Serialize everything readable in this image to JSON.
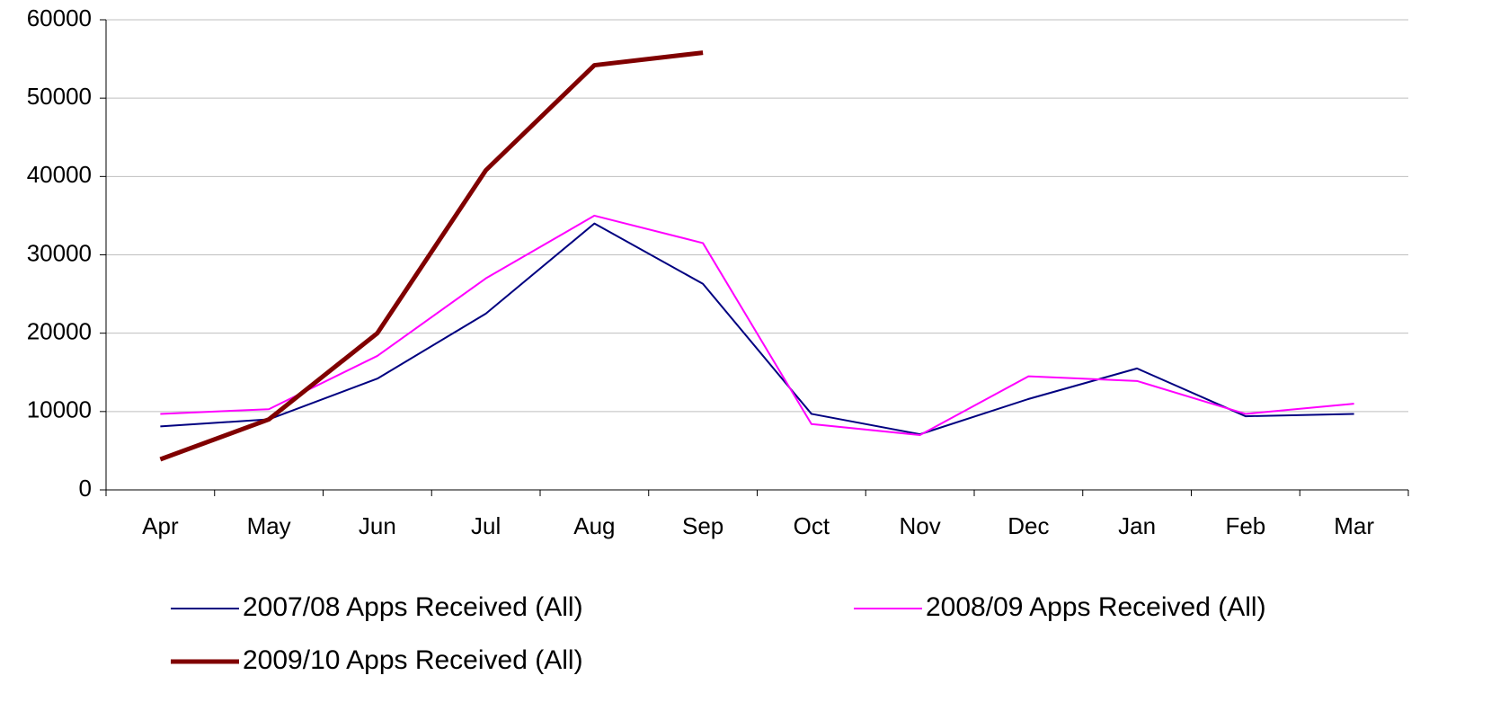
{
  "chart_data": {
    "type": "line",
    "categories": [
      "Apr",
      "May",
      "Jun",
      "Jul",
      "Aug",
      "Sep",
      "Oct",
      "Nov",
      "Dec",
      "Jan",
      "Feb",
      "Mar"
    ],
    "series": [
      {
        "name": "2007/08 Apps Received (All)",
        "color": "#000080",
        "values": [
          8100,
          9000,
          14200,
          22500,
          34000,
          26300,
          9700,
          7100,
          11600,
          15500,
          9400,
          9700
        ]
      },
      {
        "name": "2008/09 Apps Received (All)",
        "color": "#ff00ff",
        "values": [
          9700,
          10300,
          17100,
          27000,
          35000,
          31500,
          8400,
          7000,
          14500,
          13900,
          9700,
          11000
        ]
      },
      {
        "name": "2009/10 Apps Received (All)",
        "color": "#800000",
        "values": [
          3900,
          9000,
          20000,
          40800,
          54200,
          55800,
          null,
          null,
          null,
          null,
          null,
          null
        ]
      }
    ],
    "ylim": [
      0,
      60000
    ],
    "yticks": [
      0,
      10000,
      20000,
      30000,
      40000,
      50000,
      60000
    ],
    "grid": true,
    "legend": "bottom"
  }
}
